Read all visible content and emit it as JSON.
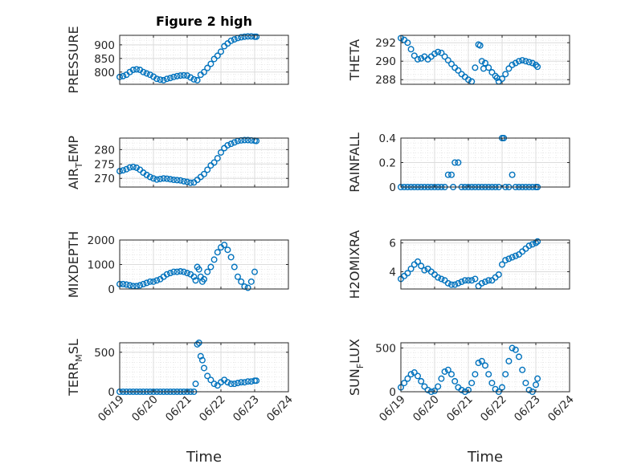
{
  "chart_data": [
    {
      "type": "scatter",
      "title": "Figure 2 high",
      "ylabel": "PRESSURE",
      "xlabel": "",
      "ylim": [
        755,
        935
      ],
      "yticks": [
        800,
        850,
        900
      ],
      "xlim": [
        0,
        5
      ],
      "marker_color": "#0072BD",
      "x": [
        0,
        0.1,
        0.2,
        0.3,
        0.4,
        0.5,
        0.6,
        0.7,
        0.8,
        0.9,
        1.0,
        1.1,
        1.2,
        1.3,
        1.4,
        1.5,
        1.6,
        1.7,
        1.8,
        1.9,
        2.0,
        2.1,
        2.2,
        2.3,
        2.4,
        2.5,
        2.6,
        2.7,
        2.8,
        2.9,
        3.0,
        3.1,
        3.2,
        3.3,
        3.4,
        3.5,
        3.6,
        3.7,
        3.8,
        3.9,
        4.0,
        4.05
      ],
      "y": [
        782,
        785,
        790,
        800,
        808,
        810,
        808,
        800,
        795,
        790,
        783,
        775,
        772,
        770,
        775,
        778,
        782,
        785,
        787,
        788,
        787,
        780,
        773,
        770,
        790,
        800,
        815,
        830,
        848,
        860,
        875,
        895,
        905,
        915,
        920,
        925,
        928,
        930,
        931,
        931,
        930,
        930
      ]
    },
    {
      "type": "scatter",
      "title": "",
      "ylabel": "THETA",
      "xlabel": "",
      "ylim": [
        287.5,
        292.8
      ],
      "yticks": [
        288,
        290,
        292
      ],
      "xlim": [
        0,
        5
      ],
      "marker_color": "#0072BD",
      "x": [
        0,
        0.1,
        0.2,
        0.3,
        0.4,
        0.5,
        0.6,
        0.7,
        0.8,
        0.9,
        1.0,
        1.1,
        1.2,
        1.3,
        1.4,
        1.5,
        1.6,
        1.7,
        1.8,
        1.9,
        2.0,
        2.1,
        2.2,
        2.3,
        2.35,
        2.4,
        2.45,
        2.5,
        2.6,
        2.7,
        2.8,
        2.85,
        2.9,
        3.0,
        3.1,
        3.2,
        3.3,
        3.4,
        3.5,
        3.6,
        3.7,
        3.8,
        3.9,
        4.0,
        4.05
      ],
      "y": [
        292.5,
        292.3,
        292.0,
        291.3,
        290.6,
        290.2,
        290.3,
        290.5,
        290.2,
        290.5,
        290.8,
        291.0,
        290.9,
        290.5,
        290.1,
        289.7,
        289.3,
        289.0,
        288.6,
        288.3,
        288.0,
        287.8,
        289.3,
        291.8,
        291.7,
        290.0,
        289.2,
        289.8,
        289.3,
        288.8,
        288.4,
        288.2,
        287.8,
        288.1,
        288.6,
        289.2,
        289.6,
        289.8,
        290.0,
        290.1,
        290.0,
        289.9,
        289.8,
        289.6,
        289.4
      ]
    },
    {
      "type": "scatter",
      "title": "",
      "ylabel": "AIR_TEMP",
      "xlabel": "",
      "ylim": [
        267,
        284
      ],
      "yticks": [
        270,
        275,
        280
      ],
      "xlim": [
        0,
        5
      ],
      "marker_color": "#0072BD",
      "x": [
        0,
        0.1,
        0.2,
        0.3,
        0.4,
        0.5,
        0.6,
        0.7,
        0.8,
        0.9,
        1.0,
        1.1,
        1.2,
        1.3,
        1.4,
        1.5,
        1.6,
        1.7,
        1.8,
        1.9,
        2.0,
        2.1,
        2.2,
        2.3,
        2.4,
        2.5,
        2.6,
        2.7,
        2.8,
        2.9,
        3.0,
        3.1,
        3.2,
        3.3,
        3.4,
        3.5,
        3.6,
        3.7,
        3.8,
        3.9,
        4.0,
        4.05
      ],
      "y": [
        272.5,
        272.8,
        273.2,
        273.8,
        274.0,
        273.7,
        273.0,
        272.0,
        271.2,
        270.5,
        270.0,
        269.6,
        269.8,
        270.0,
        269.9,
        269.7,
        269.5,
        269.4,
        269.3,
        269.0,
        268.8,
        268.5,
        268.6,
        269.5,
        270.5,
        271.5,
        273.0,
        274.5,
        275.5,
        277.0,
        279.0,
        280.5,
        281.5,
        282.0,
        282.5,
        283.0,
        283.2,
        283.3,
        283.3,
        283.2,
        283.1,
        283.0
      ]
    },
    {
      "type": "scatter",
      "title": "",
      "ylabel": "RAINFALL",
      "xlabel": "",
      "ylim": [
        0,
        0.4
      ],
      "yticks": [
        0,
        0.2,
        0.4
      ],
      "xlim": [
        0,
        5
      ],
      "marker_color": "#0072BD",
      "x": [
        0,
        0.1,
        0.2,
        0.3,
        0.4,
        0.5,
        0.6,
        0.7,
        0.8,
        0.9,
        1.0,
        1.1,
        1.2,
        1.3,
        1.4,
        1.5,
        1.55,
        1.6,
        1.7,
        1.8,
        1.9,
        2.0,
        2.1,
        2.2,
        2.3,
        2.4,
        2.5,
        2.6,
        2.7,
        2.8,
        2.9,
        3.0,
        3.05,
        3.1,
        3.2,
        3.3,
        3.4,
        3.5,
        3.6,
        3.7,
        3.8,
        3.9,
        4.0,
        4.05
      ],
      "y": [
        0,
        0,
        0,
        0,
        0,
        0,
        0,
        0,
        0,
        0,
        0,
        0,
        0,
        0,
        0.1,
        0.1,
        0,
        0.2,
        0.2,
        0,
        0,
        0,
        0,
        0,
        0,
        0,
        0,
        0,
        0,
        0,
        0,
        0.4,
        0.4,
        0,
        0,
        0.1,
        0,
        0,
        0,
        0,
        0,
        0,
        0,
        0
      ]
    },
    {
      "type": "scatter",
      "title": "",
      "ylabel": "MIXDEPTH",
      "xlabel": "",
      "ylim": [
        0,
        2000
      ],
      "yticks": [
        0,
        1000,
        2000
      ],
      "xlim": [
        0,
        5
      ],
      "marker_color": "#0072BD",
      "x": [
        0,
        0.1,
        0.2,
        0.3,
        0.4,
        0.5,
        0.6,
        0.7,
        0.8,
        0.9,
        1.0,
        1.1,
        1.2,
        1.3,
        1.4,
        1.5,
        1.6,
        1.7,
        1.8,
        1.9,
        2.0,
        2.1,
        2.2,
        2.25,
        2.3,
        2.35,
        2.4,
        2.45,
        2.5,
        2.6,
        2.7,
        2.8,
        2.9,
        3.0,
        3.1,
        3.2,
        3.3,
        3.4,
        3.5,
        3.6,
        3.7,
        3.8,
        3.9,
        4.0
      ],
      "y": [
        200,
        200,
        180,
        150,
        120,
        120,
        150,
        200,
        250,
        300,
        300,
        350,
        400,
        500,
        600,
        650,
        700,
        700,
        720,
        700,
        650,
        600,
        500,
        350,
        900,
        800,
        500,
        300,
        400,
        700,
        900,
        1200,
        1500,
        1700,
        1800,
        1600,
        1300,
        900,
        500,
        300,
        100,
        50,
        300,
        700
      ]
    },
    {
      "type": "scatter",
      "title": "",
      "ylabel": "H2OMIXRA",
      "xlabel": "",
      "ylim": [
        2.8,
        6.2
      ],
      "yticks": [
        4,
        6
      ],
      "xlim": [
        0,
        5
      ],
      "marker_color": "#0072BD",
      "x": [
        0,
        0.1,
        0.2,
        0.3,
        0.4,
        0.5,
        0.6,
        0.7,
        0.8,
        0.9,
        1.0,
        1.1,
        1.2,
        1.3,
        1.4,
        1.5,
        1.6,
        1.7,
        1.8,
        1.9,
        2.0,
        2.1,
        2.2,
        2.3,
        2.4,
        2.5,
        2.6,
        2.7,
        2.8,
        2.9,
        3.0,
        3.1,
        3.2,
        3.3,
        3.4,
        3.5,
        3.6,
        3.7,
        3.8,
        3.9,
        4.0,
        4.05
      ],
      "y": [
        3.5,
        3.7,
        3.9,
        4.2,
        4.5,
        4.7,
        4.4,
        4.1,
        4.2,
        4.0,
        3.8,
        3.6,
        3.5,
        3.4,
        3.2,
        3.1,
        3.1,
        3.2,
        3.3,
        3.4,
        3.4,
        3.4,
        3.5,
        3.0,
        3.2,
        3.3,
        3.4,
        3.4,
        3.6,
        3.8,
        4.5,
        4.8,
        4.9,
        5.0,
        5.1,
        5.2,
        5.4,
        5.6,
        5.8,
        5.9,
        6.0,
        6.1
      ]
    },
    {
      "type": "scatter",
      "title": "",
      "ylabel": "TERR_MSL",
      "xlabel": "Time",
      "ylim": [
        0,
        620
      ],
      "yticks": [
        0,
        500
      ],
      "xlim": [
        0,
        5
      ],
      "xticks": [
        "06/19",
        "06/20",
        "06/21",
        "06/22",
        "06/23",
        "06/24"
      ],
      "marker_color": "#0072BD",
      "x": [
        0,
        0.1,
        0.2,
        0.3,
        0.4,
        0.5,
        0.6,
        0.7,
        0.8,
        0.9,
        1.0,
        1.1,
        1.2,
        1.3,
        1.4,
        1.5,
        1.6,
        1.7,
        1.8,
        1.9,
        2.0,
        2.1,
        2.2,
        2.25,
        2.3,
        2.35,
        2.4,
        2.45,
        2.5,
        2.6,
        2.7,
        2.8,
        2.9,
        3.0,
        3.1,
        3.2,
        3.3,
        3.4,
        3.5,
        3.6,
        3.7,
        3.8,
        3.9,
        4.0,
        4.05
      ],
      "y": [
        0,
        0,
        0,
        0,
        0,
        0,
        0,
        0,
        0,
        0,
        0,
        0,
        0,
        0,
        0,
        0,
        0,
        0,
        0,
        0,
        0,
        0,
        0,
        100,
        600,
        620,
        450,
        400,
        300,
        200,
        150,
        100,
        80,
        120,
        150,
        120,
        100,
        100,
        110,
        120,
        120,
        130,
        130,
        140,
        140
      ]
    },
    {
      "type": "scatter",
      "title": "",
      "ylabel": "SUN_FLUX",
      "xlabel": "Time",
      "ylim": [
        0,
        560
      ],
      "yticks": [
        0,
        500
      ],
      "xlim": [
        0,
        5
      ],
      "xticks": [
        "06/19",
        "06/20",
        "06/21",
        "06/22",
        "06/23",
        "06/24"
      ],
      "marker_color": "#0072BD",
      "x": [
        0,
        0.1,
        0.2,
        0.3,
        0.4,
        0.5,
        0.6,
        0.7,
        0.8,
        0.9,
        1.0,
        1.1,
        1.2,
        1.3,
        1.4,
        1.5,
        1.6,
        1.7,
        1.8,
        1.9,
        2.0,
        2.1,
        2.2,
        2.3,
        2.4,
        2.5,
        2.6,
        2.7,
        2.8,
        2.9,
        3.0,
        3.1,
        3.2,
        3.3,
        3.4,
        3.5,
        3.6,
        3.7,
        3.8,
        3.9,
        4.0,
        4.05
      ],
      "y": [
        50,
        100,
        150,
        200,
        220,
        180,
        120,
        60,
        20,
        0,
        10,
        60,
        150,
        230,
        250,
        200,
        120,
        50,
        20,
        0,
        20,
        100,
        200,
        330,
        350,
        300,
        200,
        100,
        30,
        0,
        50,
        200,
        350,
        500,
        480,
        400,
        250,
        100,
        20,
        0,
        80,
        150
      ]
    }
  ]
}
